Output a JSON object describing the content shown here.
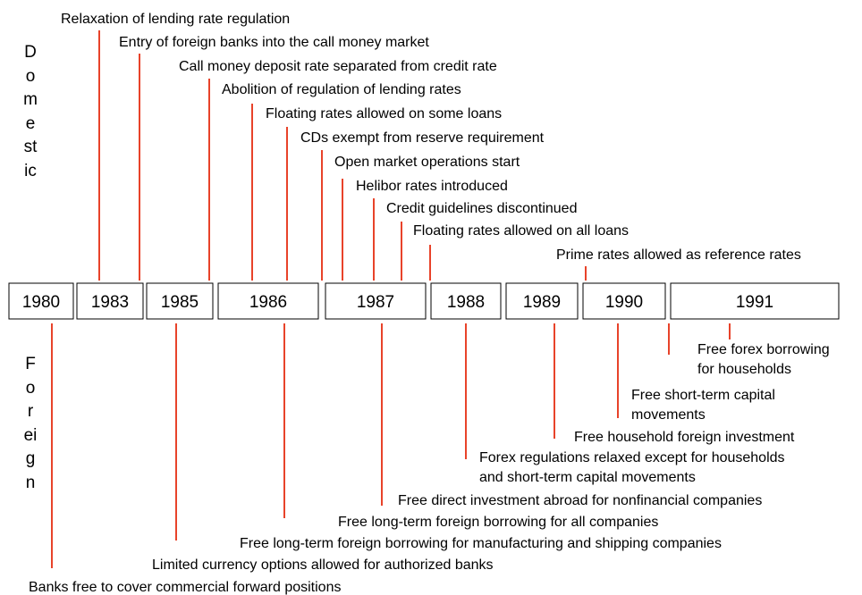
{
  "side_labels": {
    "domestic": "Domestic",
    "foreign": "Foreign"
  },
  "years": [
    "1980",
    "1983",
    "1985",
    "1986",
    "1987",
    "1988",
    "1989",
    "1990",
    "1991"
  ],
  "domestic_events": [
    {
      "lines": [
        "Relaxation of lending rate regulation"
      ]
    },
    {
      "lines": [
        "Entry of foreign banks into the call money market"
      ]
    },
    {
      "lines": [
        "Call money deposit rate separated from credit rate"
      ]
    },
    {
      "lines": [
        "Abolition of regulation of lending rates"
      ]
    },
    {
      "lines": [
        "Floating rates allowed on some loans"
      ]
    },
    {
      "lines": [
        "CDs exempt from reserve requirement"
      ]
    },
    {
      "lines": [
        "Open market operations start"
      ]
    },
    {
      "lines": [
        "Helibor rates introduced"
      ]
    },
    {
      "lines": [
        "Credit guidelines discontinued"
      ]
    },
    {
      "lines": [
        "Floating rates allowed on all loans"
      ]
    },
    {
      "lines": [
        "Prime rates allowed as reference rates"
      ]
    }
  ],
  "foreign_events": [
    {
      "lines": [
        "Free forex borrowing",
        "for households"
      ]
    },
    {
      "lines": [
        "Free short-term capital",
        "movements"
      ]
    },
    {
      "lines": [
        "Free household foreign investment"
      ]
    },
    {
      "lines": [
        "Forex regulations relaxed except for households",
        "and short-term capital movements"
      ]
    },
    {
      "lines": [
        "Free direct investment abroad for nonfinancial companies"
      ]
    },
    {
      "lines": [
        "Free long-term foreign borrowing for all companies"
      ]
    },
    {
      "lines": [
        "Free long-term foreign borrowing for manufacturing and shipping companies"
      ]
    },
    {
      "lines": [
        "Limited currency options allowed for authorized banks"
      ]
    },
    {
      "lines": [
        "Banks free to cover commercial forward positions"
      ]
    }
  ]
}
